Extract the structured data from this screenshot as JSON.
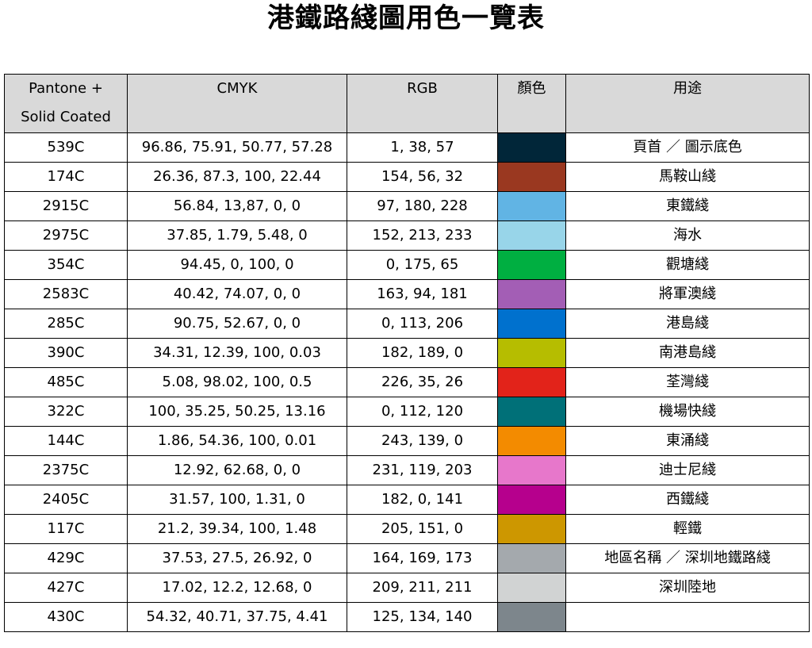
{
  "title": "港鐵路綫圖用色一覽表",
  "headers": {
    "pantone_line1": "Pantone +",
    "pantone_line2": "Solid Coated",
    "cmyk": "CMYK",
    "rgb": "RGB",
    "color": "顏色",
    "usage": "用途"
  },
  "rows": [
    {
      "pantone": "539C",
      "cmyk": "96.86, 75.91, 50.77, 57.28",
      "rgb": "1, 38, 57",
      "hex": "#012639",
      "usage": "頁首 ／ 圖示底色"
    },
    {
      "pantone": "174C",
      "cmyk": "26.36, 87.3, 100, 22.44",
      "rgb": "154, 56, 32",
      "hex": "#9a3820",
      "usage": "馬鞍山綫"
    },
    {
      "pantone": "2915C",
      "cmyk": "56.84, 13,87, 0, 0",
      "rgb": "97, 180, 228",
      "hex": "#61b4e4",
      "usage": "東鐵綫"
    },
    {
      "pantone": "2975C",
      "cmyk": "37.85, 1.79, 5.48, 0",
      "rgb": "152, 213, 233",
      "hex": "#98d5e9",
      "usage": "海水"
    },
    {
      "pantone": "354C",
      "cmyk": "94.45, 0, 100, 0",
      "rgb": "0, 175, 65",
      "hex": "#00af41",
      "usage": "觀塘綫"
    },
    {
      "pantone": "2583C",
      "cmyk": "40.42, 74.07, 0, 0",
      "rgb": "163, 94, 181",
      "hex": "#a35eb5",
      "usage": "將軍澳綫"
    },
    {
      "pantone": "285C",
      "cmyk": "90.75, 52.67, 0, 0",
      "rgb": "0, 113, 206",
      "hex": "#0071ce",
      "usage": "港島綫"
    },
    {
      "pantone": "390C",
      "cmyk": "34.31, 12.39, 100, 0.03",
      "rgb": "182, 189, 0",
      "hex": "#b6bd00",
      "usage": "南港島綫"
    },
    {
      "pantone": "485C",
      "cmyk": "5.08, 98.02, 100, 0.5",
      "rgb": "226, 35, 26",
      "hex": "#e2231a",
      "usage": "荃灣綫"
    },
    {
      "pantone": "322C",
      "cmyk": "100, 35.25, 50.25, 13.16",
      "rgb": "0, 112, 120",
      "hex": "#007078",
      "usage": "機場快綫"
    },
    {
      "pantone": "144C",
      "cmyk": "1.86, 54.36, 100, 0.01",
      "rgb": "243, 139, 0",
      "hex": "#f38b00",
      "usage": "東涌綫"
    },
    {
      "pantone": "2375C",
      "cmyk": "12.92, 62.68, 0, 0",
      "rgb": "231, 119, 203",
      "hex": "#e777cb",
      "usage": "迪士尼綫"
    },
    {
      "pantone": "2405C",
      "cmyk": "31.57, 100, 1.31, 0",
      "rgb": "182, 0, 141",
      "hex": "#b6008d",
      "usage": "西鐵綫"
    },
    {
      "pantone": "117C",
      "cmyk": "21.2, 39.34, 100, 1.48",
      "rgb": "205, 151, 0",
      "hex": "#cd9700",
      "usage": "輕鐵"
    },
    {
      "pantone": "429C",
      "cmyk": "37.53, 27.5, 26.92, 0",
      "rgb": "164, 169, 173",
      "hex": "#a4a9ad",
      "usage": "地區名稱 ／ 深圳地鐵路綫"
    },
    {
      "pantone": "427C",
      "cmyk": "17.02, 12.2, 12.68, 0",
      "rgb": "209, 211, 211",
      "hex": "#d1d3d3",
      "usage": "深圳陸地"
    },
    {
      "pantone": "430C",
      "cmyk": "54.32, 40.71, 37.75, 4.41",
      "rgb": "125, 134, 140",
      "hex": "#7d868c",
      "usage": ""
    }
  ]
}
